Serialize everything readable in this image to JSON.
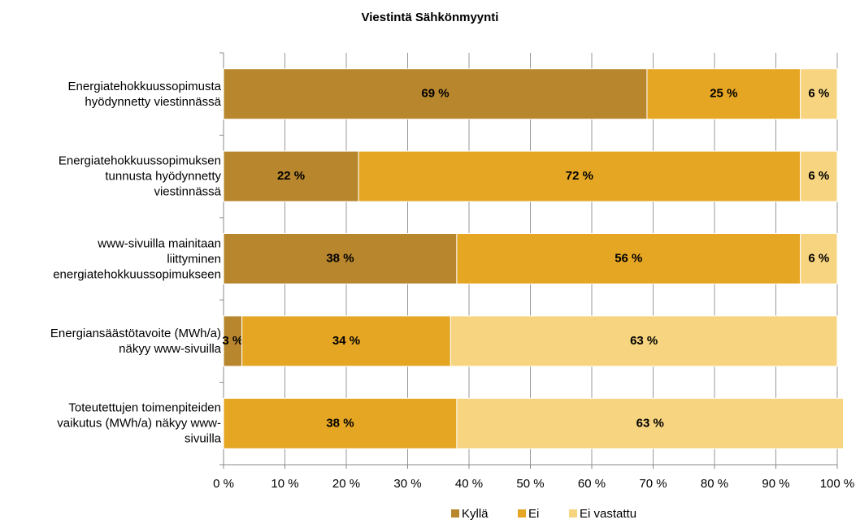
{
  "chart_data": {
    "type": "stacked_bar_horizontal",
    "title": "Viestintä Sähkönmyynti",
    "categories": [
      "Energiatehokkuussopimusta\nhyödynnetty viestinnässä",
      "Energiatehokkuussopimuksen\ntunnusta hyödynnetty\nviestinnässä",
      "www-sivuilla mainitaan\nliittyminen\nenergiatehokkuussopimukseen",
      "Energiansäästötavoite (MWh/a)\nnäkyy www-sivuilla",
      "Toteutettujen toimenpiteiden\nvaikutus (MWh/a) näkyy www-\nsivuilla"
    ],
    "series": [
      {
        "name": "Kyllä",
        "color": "#b8862d",
        "values": [
          69,
          22,
          38,
          3,
          0
        ],
        "value_labels": [
          "69 %",
          "22 %",
          "38 %",
          "3 %",
          null
        ]
      },
      {
        "name": "Ei",
        "color": "#e5a623",
        "values": [
          25,
          72,
          56,
          34,
          38
        ],
        "value_labels": [
          "25 %",
          "72 %",
          "56 %",
          "34 %",
          "38 %"
        ]
      },
      {
        "name": "Ei vastattu",
        "color": "#f7d47f",
        "values": [
          6,
          6,
          6,
          63,
          63
        ],
        "value_labels": [
          "6 %",
          "6 %",
          "6 %",
          "63 %",
          "63 %"
        ]
      }
    ],
    "xlim": [
      0,
      100
    ],
    "xticks": [
      {
        "value": 0,
        "label": "0 %"
      },
      {
        "value": 10,
        "label": "10 %"
      },
      {
        "value": 20,
        "label": "20 %"
      },
      {
        "value": 30,
        "label": "30 %"
      },
      {
        "value": 40,
        "label": "40 %"
      },
      {
        "value": 50,
        "label": "50 %"
      },
      {
        "value": 60,
        "label": "60 %"
      },
      {
        "value": 70,
        "label": "70 %"
      },
      {
        "value": 80,
        "label": "80 %"
      },
      {
        "value": 90,
        "label": "90 %"
      },
      {
        "value": 100,
        "label": "100 %"
      }
    ],
    "grid": true,
    "legend": "bottom"
  }
}
